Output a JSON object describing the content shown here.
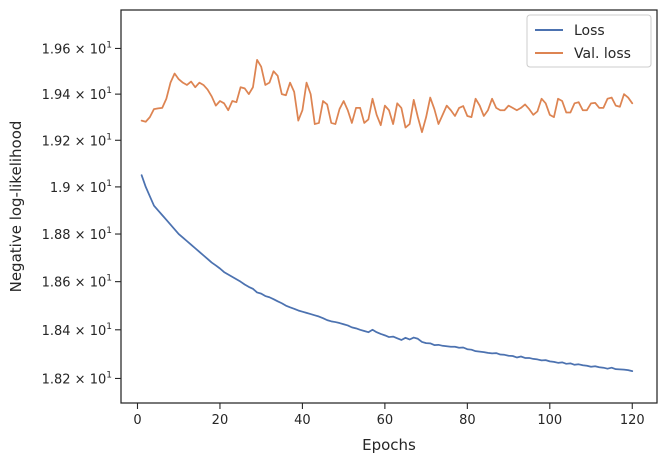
{
  "chart_data": {
    "type": "line",
    "title": "",
    "xlabel": "Epochs",
    "ylabel": "Negative log-likelihood",
    "xlim": [
      -4,
      126
    ],
    "ylim": [
      18.1,
      19.77
    ],
    "y_scale": "log",
    "grid": false,
    "legend_position": "top-right",
    "x_ticks": [
      0,
      20,
      40,
      60,
      80,
      100,
      120
    ],
    "x_tick_labels": [
      "0",
      "20",
      "40",
      "60",
      "80",
      "100",
      "120"
    ],
    "y_ticks": [
      18.2,
      18.4,
      18.6,
      18.8,
      19.0,
      19.2,
      19.4,
      19.6
    ],
    "y_tick_labels": [
      {
        "mant": "1.82",
        "exp": "1"
      },
      {
        "mant": "1.84",
        "exp": "1"
      },
      {
        "mant": "1.86",
        "exp": "1"
      },
      {
        "mant": "1.88",
        "exp": "1"
      },
      {
        "mant": "1.9",
        "exp": "1"
      },
      {
        "mant": "1.92",
        "exp": "1"
      },
      {
        "mant": "1.94",
        "exp": "1"
      },
      {
        "mant": "1.96",
        "exp": "1"
      }
    ],
    "series": [
      {
        "name": "Loss",
        "color": "#4c72b0",
        "x": [
          1,
          2,
          3,
          4,
          5,
          6,
          7,
          8,
          9,
          10,
          11,
          12,
          13,
          14,
          15,
          16,
          17,
          18,
          19,
          20,
          21,
          22,
          23,
          24,
          25,
          26,
          27,
          28,
          29,
          30,
          31,
          32,
          33,
          34,
          35,
          36,
          37,
          38,
          39,
          40,
          41,
          42,
          43,
          44,
          45,
          46,
          47,
          48,
          49,
          50,
          51,
          52,
          53,
          54,
          55,
          56,
          57,
          58,
          59,
          60,
          61,
          62,
          63,
          64,
          65,
          66,
          67,
          68,
          69,
          70,
          71,
          72,
          73,
          74,
          75,
          76,
          77,
          78,
          79,
          80,
          81,
          82,
          83,
          84,
          85,
          86,
          87,
          88,
          89,
          90,
          91,
          92,
          93,
          94,
          95,
          96,
          97,
          98,
          99,
          100,
          101,
          102,
          103,
          104,
          105,
          106,
          107,
          108,
          109,
          110,
          111,
          112,
          113,
          114,
          115,
          116,
          117,
          118,
          119,
          120
        ],
        "y": [
          19.05,
          19.0,
          18.96,
          18.92,
          18.9,
          18.88,
          18.86,
          18.84,
          18.82,
          18.8,
          18.785,
          18.77,
          18.755,
          18.74,
          18.725,
          18.71,
          18.695,
          18.68,
          18.668,
          18.655,
          18.64,
          18.63,
          18.62,
          18.61,
          18.6,
          18.588,
          18.578,
          18.57,
          18.555,
          18.55,
          18.54,
          18.535,
          18.527,
          18.518,
          18.51,
          18.5,
          18.493,
          18.487,
          18.48,
          18.475,
          18.47,
          18.465,
          18.46,
          18.455,
          18.448,
          18.44,
          18.435,
          18.432,
          18.428,
          18.423,
          18.418,
          18.41,
          18.406,
          18.4,
          18.395,
          18.39,
          18.4,
          18.39,
          18.383,
          18.377,
          18.37,
          18.372,
          18.365,
          18.358,
          18.367,
          18.36,
          18.368,
          18.363,
          18.35,
          18.345,
          18.344,
          18.337,
          18.338,
          18.334,
          18.332,
          18.33,
          18.33,
          18.326,
          18.327,
          18.32,
          18.318,
          18.312,
          18.31,
          18.308,
          18.305,
          18.303,
          18.304,
          18.298,
          18.297,
          18.293,
          18.292,
          18.286,
          18.29,
          18.284,
          18.284,
          18.28,
          18.278,
          18.274,
          18.275,
          18.27,
          18.268,
          18.264,
          18.266,
          18.26,
          18.262,
          18.256,
          18.258,
          18.254,
          18.252,
          18.248,
          18.25,
          18.246,
          18.244,
          18.24,
          18.244,
          18.238,
          18.237,
          18.236,
          18.234,
          18.23
        ]
      },
      {
        "name": "Val. loss",
        "color": "#dd8452",
        "x": [
          1,
          2,
          3,
          4,
          5,
          6,
          7,
          8,
          9,
          10,
          11,
          12,
          13,
          14,
          15,
          16,
          17,
          18,
          19,
          20,
          21,
          22,
          23,
          24,
          25,
          26,
          27,
          28,
          29,
          30,
          31,
          32,
          33,
          34,
          35,
          36,
          37,
          38,
          39,
          40,
          41,
          42,
          43,
          44,
          45,
          46,
          47,
          48,
          49,
          50,
          51,
          52,
          53,
          54,
          55,
          56,
          57,
          58,
          59,
          60,
          61,
          62,
          63,
          64,
          65,
          66,
          67,
          68,
          69,
          70,
          71,
          72,
          73,
          74,
          75,
          76,
          77,
          78,
          79,
          80,
          81,
          82,
          83,
          84,
          85,
          86,
          87,
          88,
          89,
          90,
          91,
          92,
          93,
          94,
          95,
          96,
          97,
          98,
          99,
          100,
          101,
          102,
          103,
          104,
          105,
          106,
          107,
          108,
          109,
          110,
          111,
          112,
          113,
          114,
          115,
          116,
          117,
          118,
          119,
          120
        ],
        "y": [
          19.285,
          19.28,
          19.3,
          19.335,
          19.338,
          19.34,
          19.38,
          19.45,
          19.49,
          19.465,
          19.45,
          19.44,
          19.455,
          19.43,
          19.45,
          19.44,
          19.42,
          19.39,
          19.35,
          19.37,
          19.36,
          19.33,
          19.37,
          19.365,
          19.43,
          19.425,
          19.4,
          19.43,
          19.55,
          19.52,
          19.44,
          19.45,
          19.5,
          19.48,
          19.4,
          19.395,
          19.45,
          19.41,
          19.285,
          19.33,
          19.45,
          19.4,
          19.27,
          19.275,
          19.37,
          19.355,
          19.275,
          19.27,
          19.335,
          19.37,
          19.33,
          19.275,
          19.34,
          19.34,
          19.275,
          19.29,
          19.38,
          19.31,
          19.265,
          19.35,
          19.33,
          19.27,
          19.36,
          19.34,
          19.255,
          19.27,
          19.375,
          19.3,
          19.235,
          19.3,
          19.385,
          19.335,
          19.27,
          19.31,
          19.35,
          19.33,
          19.305,
          19.34,
          19.348,
          19.305,
          19.3,
          19.38,
          19.35,
          19.305,
          19.33,
          19.38,
          19.34,
          19.33,
          19.33,
          19.35,
          19.34,
          19.33,
          19.34,
          19.355,
          19.335,
          19.31,
          19.325,
          19.38,
          19.36,
          19.31,
          19.3,
          19.38,
          19.37,
          19.32,
          19.32,
          19.36,
          19.365,
          19.33,
          19.33,
          19.36,
          19.362,
          19.34,
          19.34,
          19.38,
          19.385,
          19.35,
          19.345,
          19.4,
          19.385,
          19.36
        ]
      }
    ]
  }
}
